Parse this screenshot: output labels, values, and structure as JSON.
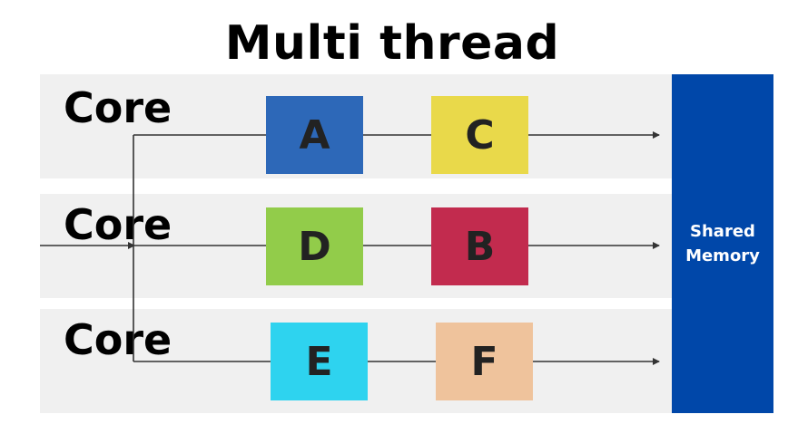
{
  "title": "Multi thread",
  "cores": [
    {
      "label": "Core",
      "threads": [
        {
          "label": "A",
          "color": "#2d68b8"
        },
        {
          "label": "C",
          "color": "#e9d94a"
        }
      ]
    },
    {
      "label": "Core",
      "threads": [
        {
          "label": "D",
          "color": "#92cc4a"
        },
        {
          "label": "B",
          "color": "#c22b4e"
        }
      ]
    },
    {
      "label": "Core",
      "threads": [
        {
          "label": "E",
          "color": "#2ed3ef"
        },
        {
          "label": "F",
          "color": "#efc39c"
        }
      ]
    }
  ],
  "memory": {
    "line1": "Shared",
    "line2": "Memory",
    "color": "#0047a9"
  },
  "lane_color": "#f0f0f0"
}
